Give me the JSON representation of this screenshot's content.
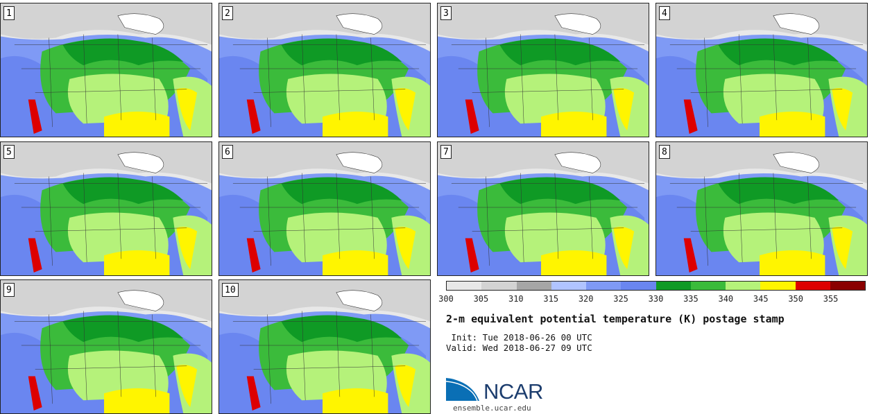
{
  "stamps": [
    {
      "label": "1"
    },
    {
      "label": "2"
    },
    {
      "label": "3"
    },
    {
      "label": "4"
    },
    {
      "label": "5"
    },
    {
      "label": "6"
    },
    {
      "label": "7"
    },
    {
      "label": "8"
    },
    {
      "label": "9"
    },
    {
      "label": "10"
    }
  ],
  "colorbar": {
    "colors": [
      "#e8e8e8",
      "#d3d3d3",
      "#a6a6a6",
      "#b0c4ff",
      "#7f9af5",
      "#6a86f0",
      "#0f9a25",
      "#3bbb3b",
      "#b5f27a",
      "#fff500",
      "#dd0000",
      "#8a0000"
    ],
    "ticks": [
      "300",
      "305",
      "310",
      "315",
      "320",
      "325",
      "330",
      "335",
      "340",
      "345",
      "350",
      "355"
    ]
  },
  "title": "2-m equivalent potential temperature (K) postage stamp",
  "init": " Init: Tue 2018-06-26 00 UTC",
  "valid": "Valid: Wed 2018-06-27 09 UTC",
  "logo": {
    "text": "NCAR",
    "url": "ensemble.ucar.edu",
    "colors": {
      "blue": "#0a6fb5",
      "navy": "#1c3d6e"
    }
  }
}
